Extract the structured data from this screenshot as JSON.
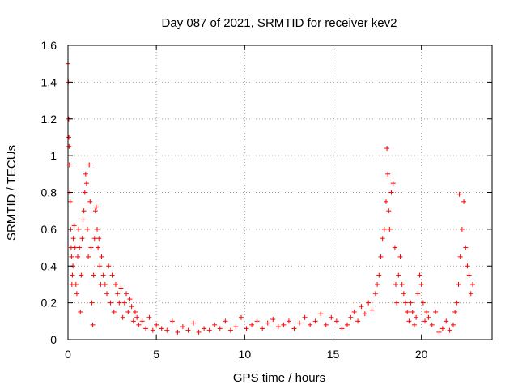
{
  "chart_data": {
    "type": "scatter",
    "title": "Day 087 of 2021, SRMTID for receiver kev2",
    "xlabel": "GPS time / hours",
    "ylabel": "SRMTID / TECUs",
    "xlim": [
      0,
      24
    ],
    "ylim": [
      0,
      1.6
    ],
    "xticks": [
      "0",
      "5",
      "10",
      "15",
      "20"
    ],
    "yticks": [
      "0",
      "0.2",
      "0.4",
      "0.6",
      "0.8",
      "1",
      "1.2",
      "1.4",
      "1.6"
    ],
    "xtick_values": [
      0,
      5,
      10,
      15,
      20
    ],
    "ytick_values": [
      0,
      0.2,
      0.4,
      0.6,
      0.8,
      1.0,
      1.2,
      1.4,
      1.6
    ],
    "grid": true,
    "marker": "plus",
    "color": "#ff0000",
    "series": [
      {
        "name": "SRMTID",
        "points": [
          [
            0.0,
            1.5
          ],
          [
            0.02,
            1.4
          ],
          [
            0.04,
            1.2
          ],
          [
            0.05,
            1.1
          ],
          [
            0.06,
            1.05
          ],
          [
            0.08,
            0.95
          ],
          [
            0.1,
            0.8
          ],
          [
            0.12,
            0.75
          ],
          [
            0.15,
            0.6
          ],
          [
            0.18,
            0.5
          ],
          [
            0.2,
            0.45
          ],
          [
            0.22,
            0.3
          ],
          [
            0.25,
            0.35
          ],
          [
            0.28,
            0.4
          ],
          [
            0.3,
            0.55
          ],
          [
            0.35,
            0.62
          ],
          [
            0.4,
            0.5
          ],
          [
            0.45,
            0.3
          ],
          [
            0.5,
            0.25
          ],
          [
            0.55,
            0.45
          ],
          [
            0.6,
            0.6
          ],
          [
            0.65,
            0.5
          ],
          [
            0.7,
            0.15
          ],
          [
            0.75,
            0.35
          ],
          [
            0.8,
            0.55
          ],
          [
            0.85,
            0.65
          ],
          [
            0.9,
            0.7
          ],
          [
            0.95,
            0.8
          ],
          [
            1.0,
            0.9
          ],
          [
            1.05,
            0.85
          ],
          [
            1.1,
            0.6
          ],
          [
            1.15,
            0.45
          ],
          [
            1.2,
            0.95
          ],
          [
            1.25,
            0.75
          ],
          [
            1.3,
            0.5
          ],
          [
            1.35,
            0.2
          ],
          [
            1.4,
            0.08
          ],
          [
            1.45,
            0.35
          ],
          [
            1.5,
            0.55
          ],
          [
            1.55,
            0.7
          ],
          [
            1.6,
            0.72
          ],
          [
            1.65,
            0.6
          ],
          [
            1.7,
            0.5
          ],
          [
            1.75,
            0.55
          ],
          [
            1.8,
            0.4
          ],
          [
            1.85,
            0.3
          ],
          [
            1.9,
            0.45
          ],
          [
            2.0,
            0.35
          ],
          [
            2.1,
            0.3
          ],
          [
            2.2,
            0.25
          ],
          [
            2.3,
            0.4
          ],
          [
            2.4,
            0.2
          ],
          [
            2.5,
            0.35
          ],
          [
            2.6,
            0.15
          ],
          [
            2.7,
            0.3
          ],
          [
            2.8,
            0.25
          ],
          [
            2.9,
            0.2
          ],
          [
            3.0,
            0.28
          ],
          [
            3.1,
            0.12
          ],
          [
            3.2,
            0.2
          ],
          [
            3.3,
            0.25
          ],
          [
            3.4,
            0.15
          ],
          [
            3.5,
            0.22
          ],
          [
            3.6,
            0.18
          ],
          [
            3.7,
            0.1
          ],
          [
            3.8,
            0.15
          ],
          [
            3.9,
            0.12
          ],
          [
            4.0,
            0.08
          ],
          [
            4.2,
            0.1
          ],
          [
            4.4,
            0.06
          ],
          [
            4.6,
            0.12
          ],
          [
            4.8,
            0.05
          ],
          [
            5.0,
            0.08
          ],
          [
            5.3,
            0.06
          ],
          [
            5.6,
            0.05
          ],
          [
            5.9,
            0.1
          ],
          [
            6.2,
            0.04
          ],
          [
            6.5,
            0.07
          ],
          [
            6.8,
            0.05
          ],
          [
            7.1,
            0.09
          ],
          [
            7.4,
            0.04
          ],
          [
            7.7,
            0.06
          ],
          [
            8.0,
            0.05
          ],
          [
            8.3,
            0.08
          ],
          [
            8.6,
            0.06
          ],
          [
            8.9,
            0.1
          ],
          [
            9.2,
            0.05
          ],
          [
            9.5,
            0.07
          ],
          [
            9.8,
            0.12
          ],
          [
            10.1,
            0.06
          ],
          [
            10.4,
            0.08
          ],
          [
            10.7,
            0.1
          ],
          [
            11.0,
            0.06
          ],
          [
            11.3,
            0.09
          ],
          [
            11.6,
            0.11
          ],
          [
            11.9,
            0.07
          ],
          [
            12.2,
            0.08
          ],
          [
            12.5,
            0.1
          ],
          [
            12.8,
            0.06
          ],
          [
            13.1,
            0.09
          ],
          [
            13.4,
            0.12
          ],
          [
            13.7,
            0.08
          ],
          [
            14.0,
            0.1
          ],
          [
            14.3,
            0.14
          ],
          [
            14.6,
            0.08
          ],
          [
            14.9,
            0.12
          ],
          [
            15.2,
            0.1
          ],
          [
            15.5,
            0.06
          ],
          [
            15.8,
            0.08
          ],
          [
            16.0,
            0.12
          ],
          [
            16.2,
            0.15
          ],
          [
            16.4,
            0.1
          ],
          [
            16.6,
            0.18
          ],
          [
            16.8,
            0.14
          ],
          [
            17.0,
            0.2
          ],
          [
            17.2,
            0.16
          ],
          [
            17.4,
            0.25
          ],
          [
            17.5,
            0.3
          ],
          [
            17.6,
            0.35
          ],
          [
            17.7,
            0.45
          ],
          [
            17.8,
            0.55
          ],
          [
            17.9,
            0.6
          ],
          [
            18.0,
            0.75
          ],
          [
            18.05,
            1.04
          ],
          [
            18.1,
            0.9
          ],
          [
            18.15,
            0.7
          ],
          [
            18.2,
            0.6
          ],
          [
            18.3,
            0.8
          ],
          [
            18.4,
            0.85
          ],
          [
            18.5,
            0.5
          ],
          [
            18.55,
            0.3
          ],
          [
            18.6,
            0.2
          ],
          [
            18.7,
            0.35
          ],
          [
            18.8,
            0.45
          ],
          [
            18.9,
            0.3
          ],
          [
            19.0,
            0.25
          ],
          [
            19.1,
            0.2
          ],
          [
            19.2,
            0.15
          ],
          [
            19.3,
            0.1
          ],
          [
            19.4,
            0.2
          ],
          [
            19.5,
            0.15
          ],
          [
            19.6,
            0.08
          ],
          [
            19.7,
            0.12
          ],
          [
            19.8,
            0.25
          ],
          [
            19.9,
            0.35
          ],
          [
            20.0,
            0.3
          ],
          [
            20.1,
            0.2
          ],
          [
            20.2,
            0.1
          ],
          [
            20.3,
            0.15
          ],
          [
            20.4,
            0.12
          ],
          [
            20.6,
            0.08
          ],
          [
            20.8,
            0.15
          ],
          [
            21.0,
            0.04
          ],
          [
            21.2,
            0.06
          ],
          [
            21.4,
            0.1
          ],
          [
            21.6,
            0.05
          ],
          [
            21.8,
            0.08
          ],
          [
            21.9,
            0.15
          ],
          [
            22.0,
            0.2
          ],
          [
            22.1,
            0.3
          ],
          [
            22.15,
            0.79
          ],
          [
            22.2,
            0.45
          ],
          [
            22.3,
            0.6
          ],
          [
            22.4,
            0.75
          ],
          [
            22.5,
            0.5
          ],
          [
            22.6,
            0.4
          ],
          [
            22.7,
            0.35
          ],
          [
            22.8,
            0.25
          ],
          [
            22.9,
            0.3
          ]
        ]
      }
    ]
  }
}
